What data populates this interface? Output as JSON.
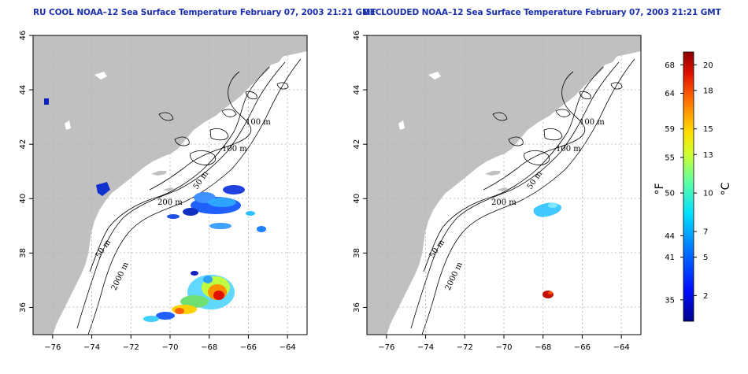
{
  "maps": [
    {
      "title": "RU COOL NOAA–12 Sea Surface Temperature February 07, 2003 21:21 GMT"
    },
    {
      "title": "DECLOUDED NOAA–12 Sea Surface Temperature February 07, 2003 21:21 GMT"
    }
  ],
  "axes": {
    "x_ticks": [
      "−76",
      "−74",
      "−72",
      "−70",
      "−68",
      "−66",
      "−64"
    ],
    "x_values": [
      -76,
      -74,
      -72,
      -70,
      -68,
      -66,
      -64
    ],
    "y_ticks": [
      "46",
      "44",
      "42",
      "40",
      "38",
      "36"
    ],
    "y_values": [
      46,
      44,
      42,
      40,
      38,
      36
    ],
    "xlim": [
      -77,
      -63
    ],
    "ylim": [
      35,
      46
    ]
  },
  "contour_labels": [
    "100 m",
    "100 m",
    "50 m",
    "200 m",
    "50 m",
    "2000 m"
  ],
  "colorbar": {
    "fahrenheit_ticks": [
      "68",
      "64",
      "59",
      "55",
      "50",
      "44",
      "41",
      "35"
    ],
    "celsius_ticks": [
      "20",
      "18",
      "15",
      "13",
      "10",
      "7",
      "5",
      "2"
    ],
    "celsius_range": [
      0,
      21
    ],
    "fahrenheit_unit": "°F",
    "celsius_unit": "°C"
  },
  "colors": {
    "land": "#c0c0c0",
    "title": "#1a2fae",
    "grid": "#b0b0b0"
  }
}
